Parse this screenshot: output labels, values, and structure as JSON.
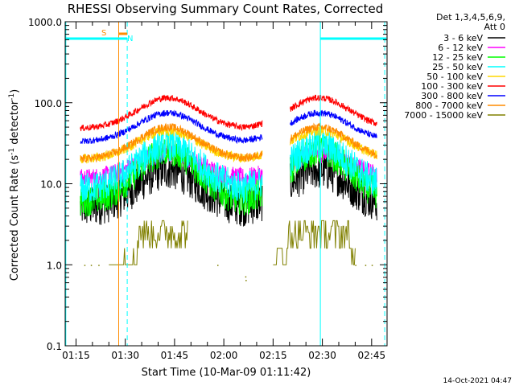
{
  "chart_data": {
    "type": "line",
    "title": "RHESSI Observing Summary Count Rates, Corrected",
    "xlabel": "Start Time (10-Mar-09 01:11:42)",
    "ylabel_main": "Corrected Count Rate (s",
    "ylabel_sup1": "-1",
    "ylabel_mid": " detector",
    "ylabel_sup2": "-1",
    "ylabel_end": ")",
    "y_scale": "log",
    "ylim": [
      0.1,
      1000.0
    ],
    "y_ticks": [
      {
        "value": 0.1,
        "label": "0.1"
      },
      {
        "value": 1.0,
        "label": "1.0"
      },
      {
        "value": 10.0,
        "label": "10.0"
      },
      {
        "value": 100.0,
        "label": "100.0"
      },
      {
        "value": 1000.0,
        "label": "1000.0"
      }
    ],
    "xlim_minutes": [
      71.7,
      169.7
    ],
    "x_ticks": [
      {
        "minutes": 75,
        "label": "01:15"
      },
      {
        "minutes": 90,
        "label": "01:30"
      },
      {
        "minutes": 105,
        "label": "01:45"
      },
      {
        "minutes": 120,
        "label": "02:00"
      },
      {
        "minutes": 135,
        "label": "02:15"
      },
      {
        "minutes": 150,
        "label": "02:30"
      },
      {
        "minutes": 165,
        "label": "02:45"
      }
    ],
    "legend_header": [
      "Det 1,3,4,5,6,9,",
      "Att 0"
    ],
    "series": [
      {
        "name": "3 - 6 keV",
        "color": "#000000",
        "low": 5.0,
        "high": 15.0,
        "noise": 0.25
      },
      {
        "name": "6 - 12 keV",
        "color": "#ff00ff",
        "low": 11.5,
        "high": 24.0,
        "noise": 0.12
      },
      {
        "name": "12 - 25 keV",
        "color": "#00ff00",
        "low": 6.0,
        "high": 26.0,
        "noise": 0.2
      },
      {
        "name": "25 - 50 keV",
        "color": "#00ffff",
        "low": 8.5,
        "high": 30.0,
        "noise": 0.2
      },
      {
        "name": "50 - 100 keV",
        "color": "#ffd700",
        "low": 20.0,
        "high": 45.0,
        "noise": 0.06
      },
      {
        "name": "100 - 300 keV",
        "color": "#ff0000",
        "low": 48.0,
        "high": 115.0,
        "noise": 0.04
      },
      {
        "name": "300 - 800 keV",
        "color": "#0000ff",
        "low": 33.0,
        "high": 75.0,
        "noise": 0.04
      },
      {
        "name": "800 - 7000 keV",
        "color": "#ff8c00",
        "low": 20.0,
        "high": 50.0,
        "noise": 0.05
      },
      {
        "name": "7000 - 15000 keV",
        "color": "#808000",
        "low": 1.0,
        "high": 3.0,
        "noise": 0.12
      }
    ],
    "peaks_minutes": [
      103,
      149
    ],
    "markers": {
      "saa_label": "S",
      "night_label": "N",
      "saa_color": "#ff8c00",
      "night_color": "#00ffff"
    },
    "grid": false,
    "legend_position": "right"
  },
  "footer": {
    "timestamp": "14-Oct-2021 04:47"
  }
}
